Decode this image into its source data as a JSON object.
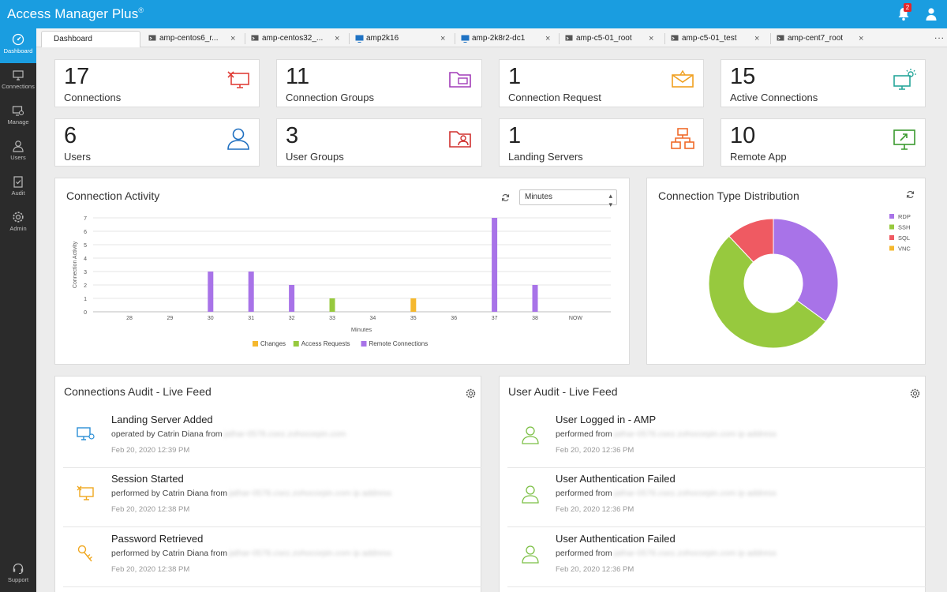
{
  "app": {
    "title": "Access Manager Plus",
    "title_mark": "®",
    "notification_count": "2"
  },
  "sidebar": {
    "items": [
      {
        "label": "Dashboard",
        "icon": "dashboard-icon"
      },
      {
        "label": "Connections",
        "icon": "connections-icon"
      },
      {
        "label": "Manage",
        "icon": "manage-icon"
      },
      {
        "label": "Users",
        "icon": "users-icon"
      },
      {
        "label": "Audit",
        "icon": "audit-icon"
      },
      {
        "label": "Admin",
        "icon": "admin-icon"
      },
      {
        "label": "Support",
        "icon": "support-icon"
      }
    ]
  },
  "tabs": [
    {
      "label": "Dashboard"
    },
    {
      "label": "amp-centos6_r..."
    },
    {
      "label": "amp-centos32_..."
    },
    {
      "label": "amp2k16"
    },
    {
      "label": "amp-2k8r2-dc1"
    },
    {
      "label": "amp-c5-01_root"
    },
    {
      "label": "amp-c5-01_test"
    },
    {
      "label": "amp-cent7_root"
    }
  ],
  "tab_more": "...",
  "tab_close": "×",
  "stats": [
    {
      "value": "17",
      "label": "Connections",
      "icon": "connections-monitor-icon",
      "color": "#e0403a"
    },
    {
      "value": "11",
      "label": "Connection Groups",
      "icon": "folder-monitor-icon",
      "color": "#a23cb8"
    },
    {
      "value": "1",
      "label": "Connection Request",
      "icon": "envelope-icon",
      "color": "#f0a020"
    },
    {
      "value": "15",
      "label": "Active Connections",
      "icon": "active-monitor-icon",
      "color": "#26a69a"
    },
    {
      "value": "6",
      "label": "Users",
      "icon": "user-icon",
      "color": "#1f6fc0"
    },
    {
      "value": "3",
      "label": "User Groups",
      "icon": "user-folder-icon",
      "color": "#d0302e"
    },
    {
      "value": "1",
      "label": "Landing Servers",
      "icon": "landing-server-icon",
      "color": "#f06a2a"
    },
    {
      "value": "10",
      "label": "Remote App",
      "icon": "remote-app-icon",
      "color": "#3a9a2e"
    }
  ],
  "activity": {
    "title": "Connection Activity",
    "select_value": "Minutes",
    "colors": {
      "changes": "#f5b82e",
      "access": "#97c93e",
      "remote": "#a873e8"
    }
  },
  "chart_data": [
    {
      "type": "bar",
      "title": "Connection Activity",
      "xlabel": "Minutes",
      "ylabel": "Connection Activity",
      "ylim": [
        0,
        7
      ],
      "yticks": [
        "0",
        "1",
        "2",
        "3",
        "4",
        "5",
        "6",
        "7"
      ],
      "categories": [
        "28",
        "29",
        "30",
        "31",
        "32",
        "33",
        "34",
        "35",
        "36",
        "37",
        "38",
        "NOW"
      ],
      "series": [
        {
          "name": "Changes",
          "values": [
            0,
            0,
            0,
            0,
            0,
            0,
            0,
            1,
            0,
            0,
            0,
            0
          ]
        },
        {
          "name": "Access Requests",
          "values": [
            0,
            0,
            0,
            0,
            0,
            1,
            0,
            0,
            0,
            0,
            0,
            0
          ]
        },
        {
          "name": "Remote Connections",
          "values": [
            0,
            0,
            3,
            3,
            2,
            0,
            0,
            0,
            0,
            7,
            2,
            0
          ]
        }
      ],
      "legend": "bottom"
    },
    {
      "type": "pie",
      "title": "Connection Type Distribution",
      "labels": [
        "RDP",
        "SSH",
        "SQL",
        "VNC"
      ],
      "values": [
        35,
        53,
        12,
        0
      ],
      "colors": [
        "#a873e8",
        "#97c93e",
        "#ef5a62",
        "#f5b82e"
      ],
      "donut": true,
      "legend": "top-right"
    }
  ],
  "distribution": {
    "title": "Connection Type Distribution"
  },
  "conn_feed": {
    "title": "Connections Audit - Live Feed",
    "items": [
      {
        "title": "Landing Server Added",
        "by": "operated by Catrin Diana from",
        "host": "jathar-0578.csez.zohocorpin.com",
        "time": "Feb 20, 2020 12:39 PM",
        "icon": "landing-server-add-icon"
      },
      {
        "title": "Session Started",
        "by": "performed by Catrin Diana from",
        "host": "jathar-0578.csez.zohocorpin.com ip address",
        "time": "Feb 20, 2020 12:38 PM",
        "icon": "session-icon"
      },
      {
        "title": "Password Retrieved",
        "by": "performed by Catrin Diana from",
        "host": "jathar-0578.csez.zohocorpin.com ip address",
        "time": "Feb 20, 2020 12:38 PM",
        "icon": "key-icon"
      }
    ]
  },
  "user_feed": {
    "title": "User Audit - Live Feed",
    "items": [
      {
        "title": "User Logged in - AMP",
        "by": "performed from",
        "host": "jathar-0578.csez.zohocorpin.com ip address",
        "time": "Feb 20, 2020 12:36 PM"
      },
      {
        "title": "User Authentication Failed",
        "by": "performed from",
        "host": "jathar-0578.csez.zohocorpin.com ip address",
        "time": "Feb 20, 2020 12:36 PM"
      },
      {
        "title": "User Authentication Failed",
        "by": "performed from",
        "host": "jathar-0578.csez.zohocorpin.com ip address",
        "time": "Feb 20, 2020 12:36 PM"
      }
    ]
  }
}
